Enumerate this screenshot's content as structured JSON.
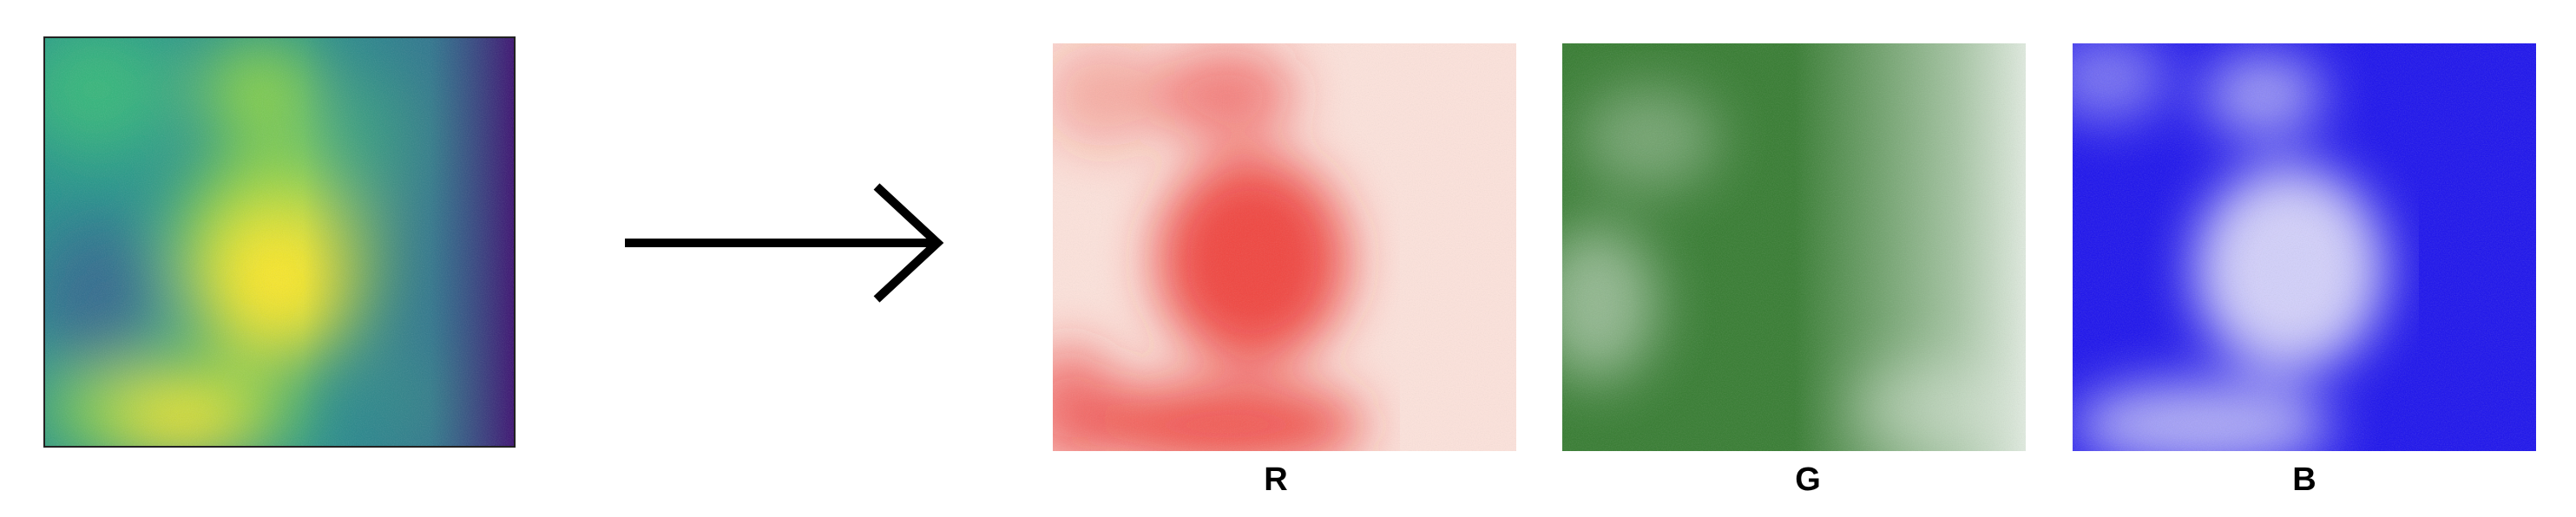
{
  "source_image": {
    "colormap": "viridis",
    "colors": [
      "#3b0f70",
      "#31688e",
      "#21918c",
      "#35b779",
      "#90d743",
      "#fde725"
    ]
  },
  "arrow": {
    "color": "#000000"
  },
  "channels": [
    {
      "label": "R",
      "color": "#ee2a24",
      "background": "#fde3dc"
    },
    {
      "label": "G",
      "color": "#1f6e1a",
      "background": "#f2f7f1"
    },
    {
      "label": "B",
      "color": "#1a10ee",
      "background": "#f4f3fe"
    }
  ]
}
